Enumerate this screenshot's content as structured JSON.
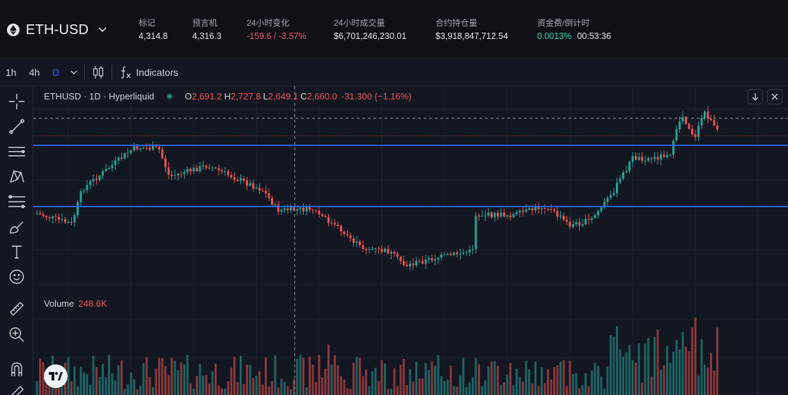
{
  "market": {
    "symbol": "ETH-USD",
    "stats": [
      {
        "label": "标记",
        "value": "4,314.8",
        "tone": "neutral"
      },
      {
        "label": "预言机",
        "value": "4,316.3",
        "tone": "neutral"
      },
      {
        "label": "24小时变化",
        "value": "-159.6 / -3.57%",
        "tone": "neg"
      },
      {
        "label": "24小时成交量",
        "value": "$6,701,246,230.01",
        "tone": "neutral"
      },
      {
        "label": "合约持仓量",
        "value": "$3,918,847,712.54",
        "tone": "neutral"
      },
      {
        "label": "资金费/倒计时",
        "value": "0.0013%",
        "countdown": "00:53:36",
        "tone": "pos"
      }
    ]
  },
  "toolbar": {
    "timeframes": [
      "1h",
      "4h",
      "D"
    ],
    "active_timeframe": "D",
    "indicators_label": "Indicators"
  },
  "legend": {
    "symbol": "ETHUSD · 1D · Hyperliquid",
    "o_label": "O",
    "o": "2,691.2",
    "h_label": "H",
    "h": "2,727.8",
    "l_label": "L",
    "l": "2,649.1",
    "c_label": "C",
    "c": "2,660.0",
    "change": "-31.300 (−1.16%)"
  },
  "volume": {
    "label": "Volume",
    "value": "248.6K"
  },
  "colors": {
    "up": "#26a69a",
    "down": "#ef5350",
    "horizontal_line": "#2962ff",
    "background": "#131722",
    "grid": "#1e222d"
  },
  "drawing_tools": [
    "crosshair-icon",
    "trend-line-icon",
    "horizontal-lines-icon",
    "pattern-icon",
    "fib-icon",
    "brush-icon",
    "text-icon",
    "emoji-icon",
    "ruler-icon",
    "zoom-in-icon",
    "magnet-icon",
    "pencil-icon"
  ]
}
